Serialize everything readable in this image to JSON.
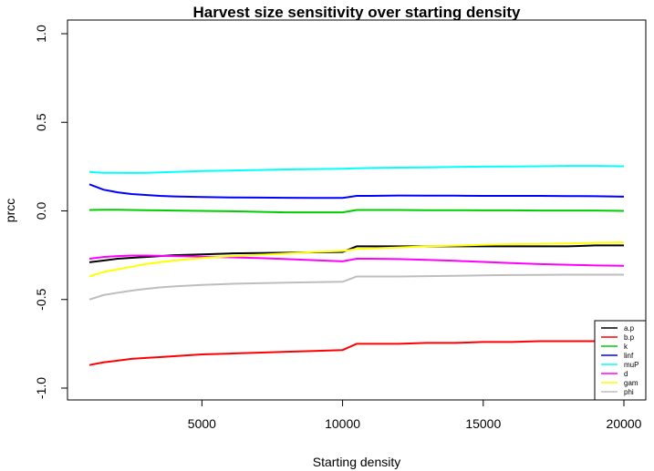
{
  "chart_data": {
    "type": "line",
    "title": "Harvest size sensitivity over starting density",
    "xlabel": "Starting density",
    "ylabel": "prcc",
    "xlim": [
      1000,
      20000
    ],
    "ylim": [
      -1.0,
      1.0
    ],
    "xticks": [
      5000,
      10000,
      15000,
      20000
    ],
    "yticks": [
      -1.0,
      -0.5,
      0.0,
      0.5,
      1.0
    ],
    "ytick_labels": [
      "-1.0",
      "-0.5",
      "0.0",
      "0.5",
      "1.0"
    ],
    "grid": false,
    "legend_position": "bottom-right",
    "x": [
      1000,
      1500,
      2000,
      2500,
      3000,
      3500,
      4000,
      5000,
      6000,
      7000,
      8000,
      9000,
      10000,
      10500,
      11000,
      12000,
      13000,
      14000,
      15000,
      16000,
      17000,
      18000,
      19000,
      20000
    ],
    "series": [
      {
        "name": "a.p",
        "color": "#000000",
        "values": [
          -0.29,
          -0.28,
          -0.27,
          -0.265,
          -0.26,
          -0.255,
          -0.25,
          -0.245,
          -0.24,
          -0.238,
          -0.236,
          -0.234,
          -0.232,
          -0.2,
          -0.2,
          -0.2,
          -0.2,
          -0.2,
          -0.2,
          -0.2,
          -0.2,
          -0.2,
          -0.195,
          -0.195
        ]
      },
      {
        "name": "b.p",
        "color": "#ff0000",
        "values": [
          -0.87,
          -0.855,
          -0.845,
          -0.835,
          -0.83,
          -0.825,
          -0.82,
          -0.81,
          -0.805,
          -0.8,
          -0.795,
          -0.79,
          -0.785,
          -0.75,
          -0.75,
          -0.75,
          -0.745,
          -0.745,
          -0.74,
          -0.74,
          -0.735,
          -0.735,
          -0.735,
          -0.735
        ]
      },
      {
        "name": "k",
        "color": "#00cd00",
        "values": [
          0.005,
          0.006,
          0.006,
          0.005,
          0.004,
          0.003,
          0.002,
          0.0,
          -0.002,
          -0.005,
          -0.008,
          -0.008,
          -0.008,
          0.005,
          0.005,
          0.005,
          0.004,
          0.004,
          0.003,
          0.003,
          0.002,
          0.002,
          0.002,
          0.0
        ]
      },
      {
        "name": "linf",
        "color": "#0000ff",
        "values": [
          0.15,
          0.12,
          0.105,
          0.095,
          0.09,
          0.085,
          0.082,
          0.078,
          0.076,
          0.075,
          0.074,
          0.073,
          0.073,
          0.085,
          0.085,
          0.087,
          0.086,
          0.086,
          0.085,
          0.085,
          0.085,
          0.084,
          0.083,
          0.08
        ]
      },
      {
        "name": "muP",
        "color": "#00ffff",
        "values": [
          0.22,
          0.215,
          0.215,
          0.214,
          0.215,
          0.217,
          0.22,
          0.225,
          0.228,
          0.231,
          0.234,
          0.236,
          0.238,
          0.24,
          0.242,
          0.244,
          0.246,
          0.248,
          0.25,
          0.251,
          0.252,
          0.254,
          0.254,
          0.252
        ]
      },
      {
        "name": "d",
        "color": "#ff00ff",
        "values": [
          -0.27,
          -0.26,
          -0.255,
          -0.252,
          -0.252,
          -0.253,
          -0.255,
          -0.258,
          -0.262,
          -0.266,
          -0.272,
          -0.278,
          -0.285,
          -0.27,
          -0.27,
          -0.272,
          -0.276,
          -0.282,
          -0.288,
          -0.294,
          -0.3,
          -0.304,
          -0.308,
          -0.31
        ]
      },
      {
        "name": "gam",
        "color": "#ffff00",
        "values": [
          -0.37,
          -0.345,
          -0.33,
          -0.315,
          -0.3,
          -0.29,
          -0.28,
          -0.266,
          -0.256,
          -0.248,
          -0.24,
          -0.232,
          -0.226,
          -0.215,
          -0.212,
          -0.206,
          -0.2,
          -0.196,
          -0.192,
          -0.188,
          -0.186,
          -0.184,
          -0.18,
          -0.178
        ]
      },
      {
        "name": "phi",
        "color": "#bebebe",
        "values": [
          -0.5,
          -0.475,
          -0.462,
          -0.45,
          -0.44,
          -0.432,
          -0.426,
          -0.418,
          -0.412,
          -0.408,
          -0.405,
          -0.402,
          -0.4,
          -0.37,
          -0.37,
          -0.37,
          -0.368,
          -0.366,
          -0.364,
          -0.362,
          -0.361,
          -0.36,
          -0.36,
          -0.36
        ]
      }
    ]
  }
}
